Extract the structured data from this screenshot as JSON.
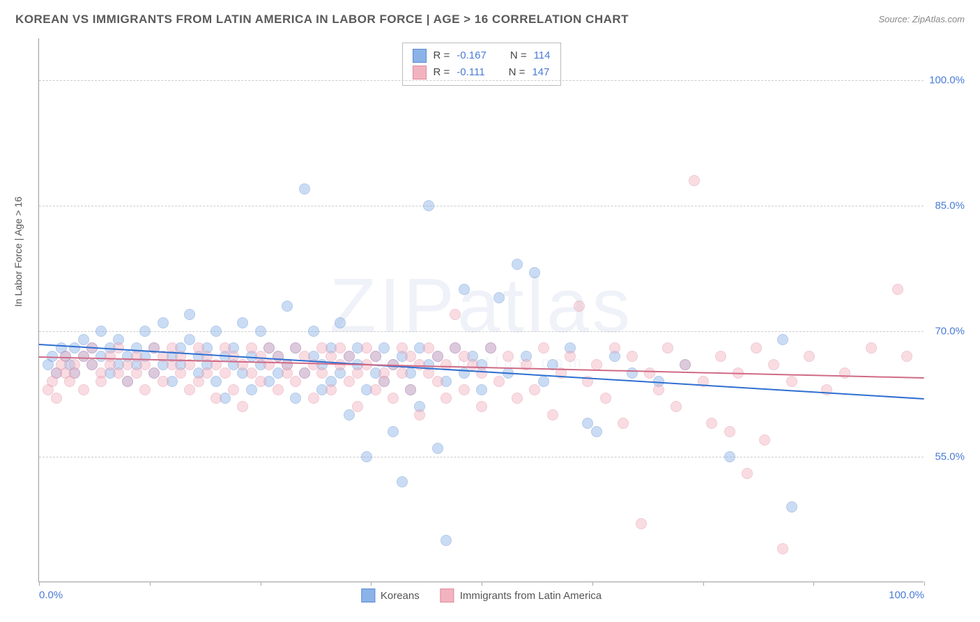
{
  "title": "KOREAN VS IMMIGRANTS FROM LATIN AMERICA IN LABOR FORCE | AGE > 16 CORRELATION CHART",
  "source": "Source: ZipAtlas.com",
  "watermark": "ZIPatlas",
  "watermark_sub": "www.zipatlas.com",
  "y_axis_label": "In Labor Force | Age > 16",
  "chart": {
    "type": "scatter",
    "xlim": [
      0,
      100
    ],
    "ylim": [
      40,
      105
    ],
    "x_ticks": [
      0,
      12.5,
      25,
      37.5,
      50,
      62.5,
      75,
      87.5,
      100
    ],
    "x_tick_labels": {
      "0": "0.0%",
      "100": "100.0%"
    },
    "y_ticks": [
      55,
      70,
      85,
      100
    ],
    "y_tick_labels": {
      "55": "55.0%",
      "70": "70.0%",
      "85": "85.0%",
      "100": "100.0%"
    },
    "grid_color": "#d5d5d5",
    "background_color": "#ffffff",
    "marker_radius": 8,
    "marker_opacity": 0.45,
    "series": [
      {
        "name": "Koreans",
        "fill": "#8bb3e8",
        "stroke": "#5a8bd0",
        "trend_color": "#2f6fd0",
        "R": "-0.167",
        "N": "114",
        "trend": {
          "x1": 0,
          "y1": 68.5,
          "x2": 100,
          "y2": 62.0
        },
        "points": [
          [
            1,
            66
          ],
          [
            1.5,
            67
          ],
          [
            2,
            65
          ],
          [
            2.5,
            68
          ],
          [
            3,
            67
          ],
          [
            3.5,
            66
          ],
          [
            4,
            68
          ],
          [
            4,
            65
          ],
          [
            5,
            67
          ],
          [
            5,
            69
          ],
          [
            6,
            66
          ],
          [
            6,
            68
          ],
          [
            7,
            67
          ],
          [
            7,
            70
          ],
          [
            8,
            65
          ],
          [
            8,
            68
          ],
          [
            9,
            66
          ],
          [
            9,
            69
          ],
          [
            10,
            67
          ],
          [
            10,
            64
          ],
          [
            11,
            68
          ],
          [
            11,
            66
          ],
          [
            12,
            67
          ],
          [
            12,
            70
          ],
          [
            13,
            65
          ],
          [
            13,
            68
          ],
          [
            14,
            66
          ],
          [
            14,
            71
          ],
          [
            15,
            67
          ],
          [
            15,
            64
          ],
          [
            16,
            68
          ],
          [
            16,
            66
          ],
          [
            17,
            69
          ],
          [
            17,
            72
          ],
          [
            18,
            65
          ],
          [
            18,
            67
          ],
          [
            19,
            66
          ],
          [
            19,
            68
          ],
          [
            20,
            64
          ],
          [
            20,
            70
          ],
          [
            21,
            67
          ],
          [
            21,
            62
          ],
          [
            22,
            66
          ],
          [
            22,
            68
          ],
          [
            23,
            65
          ],
          [
            23,
            71
          ],
          [
            24,
            67
          ],
          [
            24,
            63
          ],
          [
            25,
            66
          ],
          [
            25,
            70
          ],
          [
            26,
            68
          ],
          [
            26,
            64
          ],
          [
            27,
            65
          ],
          [
            27,
            67
          ],
          [
            28,
            73
          ],
          [
            28,
            66
          ],
          [
            29,
            62
          ],
          [
            29,
            68
          ],
          [
            30,
            87
          ],
          [
            30,
            65
          ],
          [
            31,
            67
          ],
          [
            31,
            70
          ],
          [
            32,
            63
          ],
          [
            32,
            66
          ],
          [
            33,
            68
          ],
          [
            33,
            64
          ],
          [
            34,
            65
          ],
          [
            34,
            71
          ],
          [
            35,
            67
          ],
          [
            35,
            60
          ],
          [
            36,
            66
          ],
          [
            36,
            68
          ],
          [
            37,
            63
          ],
          [
            37,
            55
          ],
          [
            38,
            67
          ],
          [
            38,
            65
          ],
          [
            39,
            64
          ],
          [
            39,
            68
          ],
          [
            40,
            58
          ],
          [
            40,
            66
          ],
          [
            41,
            52
          ],
          [
            41,
            67
          ],
          [
            42,
            65
          ],
          [
            42,
            63
          ],
          [
            43,
            68
          ],
          [
            43,
            61
          ],
          [
            44,
            66
          ],
          [
            44,
            85
          ],
          [
            45,
            56
          ],
          [
            45,
            67
          ],
          [
            46,
            64
          ],
          [
            46,
            45
          ],
          [
            47,
            68
          ],
          [
            48,
            65
          ],
          [
            48,
            75
          ],
          [
            49,
            67
          ],
          [
            50,
            63
          ],
          [
            50,
            66
          ],
          [
            51,
            68
          ],
          [
            52,
            74
          ],
          [
            53,
            65
          ],
          [
            54,
            78
          ],
          [
            55,
            67
          ],
          [
            56,
            77
          ],
          [
            57,
            64
          ],
          [
            58,
            66
          ],
          [
            60,
            68
          ],
          [
            62,
            59
          ],
          [
            63,
            58
          ],
          [
            65,
            67
          ],
          [
            67,
            65
          ],
          [
            70,
            64
          ],
          [
            73,
            66
          ],
          [
            78,
            55
          ],
          [
            84,
            69
          ],
          [
            85,
            49
          ]
        ]
      },
      {
        "name": "Immigrants from Latin America",
        "fill": "#f2b3c0",
        "stroke": "#e08a9e",
        "trend_color": "#d06a85",
        "R": "-0.111",
        "N": "147",
        "trend": {
          "x1": 0,
          "y1": 67.0,
          "x2": 100,
          "y2": 64.5
        },
        "points": [
          [
            1,
            63
          ],
          [
            1.5,
            64
          ],
          [
            2,
            65
          ],
          [
            2,
            62
          ],
          [
            2.5,
            66
          ],
          [
            3,
            65
          ],
          [
            3,
            67
          ],
          [
            3.5,
            64
          ],
          [
            4,
            66
          ],
          [
            4,
            65
          ],
          [
            5,
            67
          ],
          [
            5,
            63
          ],
          [
            6,
            66
          ],
          [
            6,
            68
          ],
          [
            7,
            65
          ],
          [
            7,
            64
          ],
          [
            8,
            67
          ],
          [
            8,
            66
          ],
          [
            9,
            65
          ],
          [
            9,
            68
          ],
          [
            10,
            64
          ],
          [
            10,
            66
          ],
          [
            11,
            67
          ],
          [
            11,
            65
          ],
          [
            12,
            66
          ],
          [
            12,
            63
          ],
          [
            13,
            68
          ],
          [
            13,
            65
          ],
          [
            14,
            67
          ],
          [
            14,
            64
          ],
          [
            15,
            66
          ],
          [
            15,
            68
          ],
          [
            16,
            65
          ],
          [
            16,
            67
          ],
          [
            17,
            63
          ],
          [
            17,
            66
          ],
          [
            18,
            68
          ],
          [
            18,
            64
          ],
          [
            19,
            67
          ],
          [
            19,
            65
          ],
          [
            20,
            66
          ],
          [
            20,
            62
          ],
          [
            21,
            68
          ],
          [
            21,
            65
          ],
          [
            22,
            67
          ],
          [
            22,
            63
          ],
          [
            23,
            66
          ],
          [
            23,
            61
          ],
          [
            24,
            68
          ],
          [
            24,
            65
          ],
          [
            25,
            67
          ],
          [
            25,
            64
          ],
          [
            26,
            66
          ],
          [
            26,
            68
          ],
          [
            27,
            63
          ],
          [
            27,
            67
          ],
          [
            28,
            65
          ],
          [
            28,
            66
          ],
          [
            29,
            68
          ],
          [
            29,
            64
          ],
          [
            30,
            67
          ],
          [
            30,
            65
          ],
          [
            31,
            66
          ],
          [
            31,
            62
          ],
          [
            32,
            68
          ],
          [
            32,
            65
          ],
          [
            33,
            67
          ],
          [
            33,
            63
          ],
          [
            34,
            66
          ],
          [
            34,
            68
          ],
          [
            35,
            64
          ],
          [
            35,
            67
          ],
          [
            36,
            65
          ],
          [
            36,
            61
          ],
          [
            37,
            66
          ],
          [
            37,
            68
          ],
          [
            38,
            63
          ],
          [
            38,
            67
          ],
          [
            39,
            65
          ],
          [
            39,
            64
          ],
          [
            40,
            66
          ],
          [
            40,
            62
          ],
          [
            41,
            68
          ],
          [
            41,
            65
          ],
          [
            42,
            67
          ],
          [
            42,
            63
          ],
          [
            43,
            66
          ],
          [
            43,
            60
          ],
          [
            44,
            68
          ],
          [
            44,
            65
          ],
          [
            45,
            67
          ],
          [
            45,
            64
          ],
          [
            46,
            66
          ],
          [
            46,
            62
          ],
          [
            47,
            68
          ],
          [
            47,
            72
          ],
          [
            48,
            67
          ],
          [
            48,
            63
          ],
          [
            49,
            66
          ],
          [
            50,
            65
          ],
          [
            50,
            61
          ],
          [
            51,
            68
          ],
          [
            52,
            64
          ],
          [
            53,
            67
          ],
          [
            54,
            62
          ],
          [
            55,
            66
          ],
          [
            56,
            63
          ],
          [
            57,
            68
          ],
          [
            58,
            60
          ],
          [
            59,
            65
          ],
          [
            60,
            67
          ],
          [
            61,
            73
          ],
          [
            62,
            64
          ],
          [
            63,
            66
          ],
          [
            64,
            62
          ],
          [
            65,
            68
          ],
          [
            66,
            59
          ],
          [
            67,
            67
          ],
          [
            68,
            47
          ],
          [
            69,
            65
          ],
          [
            70,
            63
          ],
          [
            71,
            68
          ],
          [
            72,
            61
          ],
          [
            73,
            66
          ],
          [
            74,
            88
          ],
          [
            75,
            64
          ],
          [
            76,
            59
          ],
          [
            77,
            67
          ],
          [
            78,
            58
          ],
          [
            79,
            65
          ],
          [
            80,
            53
          ],
          [
            81,
            68
          ],
          [
            82,
            57
          ],
          [
            83,
            66
          ],
          [
            84,
            44
          ],
          [
            85,
            64
          ],
          [
            87,
            67
          ],
          [
            89,
            63
          ],
          [
            91,
            65
          ],
          [
            94,
            68
          ],
          [
            97,
            75
          ],
          [
            98,
            67
          ]
        ]
      }
    ],
    "legend_bottom": [
      {
        "label": "Koreans",
        "fill": "#8bb3e8",
        "stroke": "#5a8bd0"
      },
      {
        "label": "Immigrants from Latin America",
        "fill": "#f2b3c0",
        "stroke": "#e08a9e"
      }
    ]
  }
}
